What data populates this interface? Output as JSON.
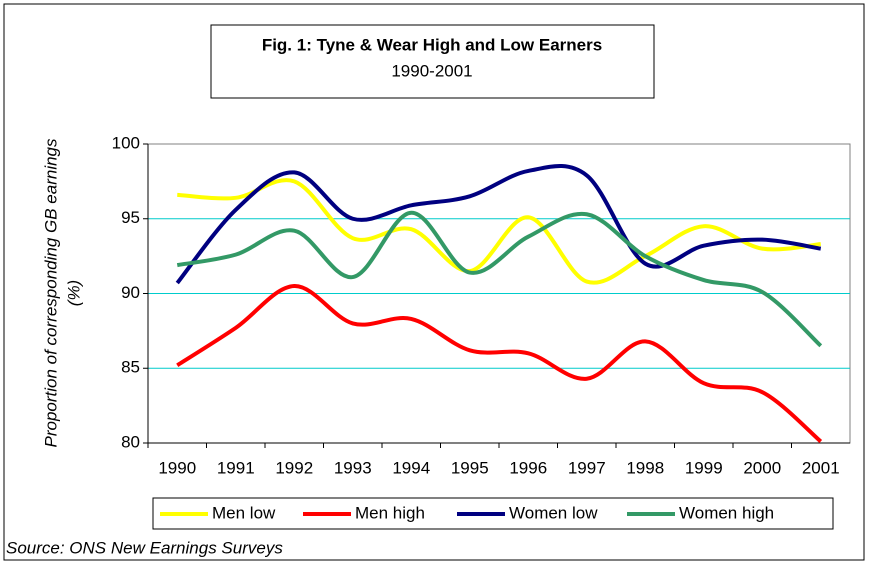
{
  "chart_data": {
    "type": "line",
    "title": "Fig. 1: Tyne & Wear High and Low Earners",
    "subtitle": "1990-2001",
    "y_label": [
      "Proportion of corresponding GB earnings",
      "(%)"
    ],
    "source": "Source: ONS New Earnings Surveys",
    "categories": [
      "1990",
      "1991",
      "1992",
      "1993",
      "1994",
      "1995",
      "1996",
      "1997",
      "1998",
      "1999",
      "2000",
      "2001"
    ],
    "series": [
      {
        "name": "Men low",
        "color": "#ffff00",
        "values": [
          96.6,
          96.4,
          97.5,
          93.7,
          94.3,
          91.5,
          95.1,
          90.8,
          92.5,
          94.5,
          93.0,
          93.3
        ]
      },
      {
        "name": "Men high",
        "color": "#ff0000",
        "values": [
          85.2,
          87.7,
          90.5,
          88.0,
          88.3,
          86.2,
          86.0,
          84.3,
          86.8,
          84.0,
          83.4,
          80.1
        ]
      },
      {
        "name": "Women low",
        "color": "#000080",
        "values": [
          90.7,
          95.6,
          98.1,
          95.0,
          95.9,
          96.5,
          98.2,
          97.9,
          92.0,
          93.2,
          93.6,
          93.0
        ]
      },
      {
        "name": "Women high",
        "color": "#339966",
        "values": [
          91.9,
          92.6,
          94.2,
          91.1,
          95.4,
          91.4,
          93.8,
          95.3,
          92.5,
          90.9,
          90.1,
          86.5
        ]
      }
    ],
    "ylim": [
      80,
      100
    ],
    "yticks": [
      80,
      85,
      90,
      95,
      100
    ],
    "grid": true,
    "grid_color": "#00cccc",
    "smooth": true
  }
}
